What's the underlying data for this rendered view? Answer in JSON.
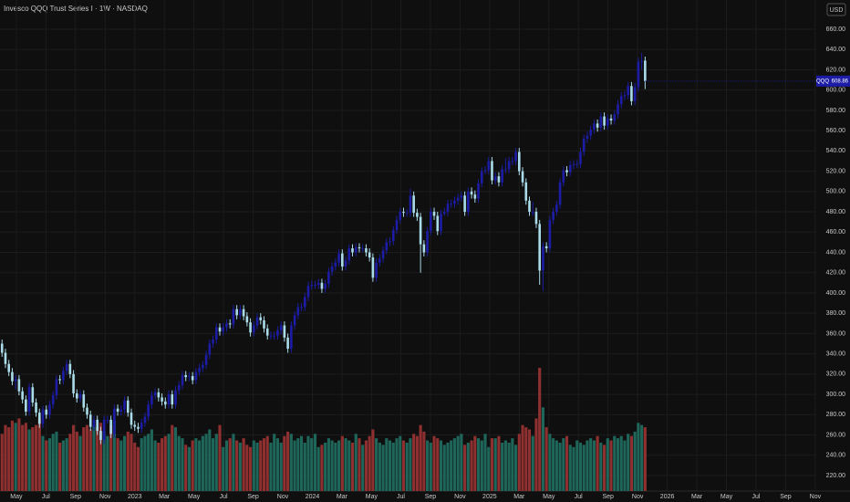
{
  "chart_data": {
    "type": "candlestick",
    "title": "Invesco QQQ Trust Series I · 1W · NASDAQ",
    "symbol": "QQQ",
    "currency": "USD",
    "up_color": "#1c1ca6",
    "down_color": "#a9dbe8",
    "volume_up_color": "#1f665a",
    "volume_down_color": "#8e3030",
    "grid": true,
    "ylim": [
      204.7,
      688.8
    ],
    "yticks": [
      {
        "value": 220,
        "label": "220.00"
      },
      {
        "value": 240,
        "label": "240.00"
      },
      {
        "value": 260,
        "label": "260.00"
      },
      {
        "value": 280,
        "label": "280.00"
      },
      {
        "value": 300,
        "label": "300.00"
      },
      {
        "value": 320,
        "label": "320.00"
      },
      {
        "value": 340,
        "label": "340.00"
      },
      {
        "value": 360,
        "label": "360.00"
      },
      {
        "value": 380,
        "label": "380.00"
      },
      {
        "value": 400,
        "label": "400.00"
      },
      {
        "value": 420,
        "label": "420.00"
      },
      {
        "value": 440,
        "label": "440.00"
      },
      {
        "value": 460,
        "label": "460.00"
      },
      {
        "value": 480,
        "label": "480.00"
      },
      {
        "value": 500,
        "label": "500.00"
      },
      {
        "value": 520,
        "label": "520.00"
      },
      {
        "value": 540,
        "label": "540.00"
      },
      {
        "value": 560,
        "label": "560.00"
      },
      {
        "value": 580,
        "label": "580.00"
      },
      {
        "value": 600,
        "label": "600.00"
      },
      {
        "value": 620,
        "label": "620.00"
      },
      {
        "value": 640,
        "label": "640.00"
      },
      {
        "value": 660,
        "label": "660.00"
      }
    ],
    "xlim": [
      -0.6,
      239.3
    ],
    "xticks": [
      {
        "value": 4.2,
        "label": "May"
      },
      {
        "value": 12.9,
        "label": "Jul"
      },
      {
        "value": 21.6,
        "label": "Sep"
      },
      {
        "value": 30.3,
        "label": "Nov"
      },
      {
        "value": 39.0,
        "label": "2023"
      },
      {
        "value": 47.7,
        "label": "Mar"
      },
      {
        "value": 56.4,
        "label": "May"
      },
      {
        "value": 65.1,
        "label": "Jul"
      },
      {
        "value": 73.8,
        "label": "Sep"
      },
      {
        "value": 82.5,
        "label": "Nov"
      },
      {
        "value": 91.2,
        "label": "2024"
      },
      {
        "value": 99.9,
        "label": "Mar"
      },
      {
        "value": 108.6,
        "label": "May"
      },
      {
        "value": 117.2,
        "label": "Jul"
      },
      {
        "value": 125.9,
        "label": "Sep"
      },
      {
        "value": 134.6,
        "label": "Nov"
      },
      {
        "value": 143.3,
        "label": "2025"
      },
      {
        "value": 152.0,
        "label": "Mar"
      },
      {
        "value": 160.7,
        "label": "May"
      },
      {
        "value": 169.4,
        "label": "Jul"
      },
      {
        "value": 178.1,
        "label": "Sep"
      },
      {
        "value": 186.8,
        "label": "Nov"
      },
      {
        "value": 195.5,
        "label": "2026"
      },
      {
        "value": 204.2,
        "label": "Mar"
      },
      {
        "value": 212.9,
        "label": "May"
      },
      {
        "value": 221.6,
        "label": "Jul"
      },
      {
        "value": 230.3,
        "label": "Sep"
      },
      {
        "value": 239.0,
        "label": "Nov"
      }
    ],
    "candles": [
      [
        350,
        354,
        337,
        341
      ],
      [
        341,
        345,
        326,
        330
      ],
      [
        330,
        334,
        318,
        322
      ],
      [
        322,
        326,
        309,
        313
      ],
      [
        313,
        319,
        305,
        315
      ],
      [
        315,
        319,
        299,
        303
      ],
      [
        303,
        307,
        291,
        295
      ],
      [
        295,
        299,
        279,
        283
      ],
      [
        283,
        311,
        279,
        307
      ],
      [
        307,
        311,
        288,
        292
      ],
      [
        292,
        296,
        278,
        282
      ],
      [
        282,
        286,
        267,
        271
      ],
      [
        271,
        289,
        267,
        285
      ],
      [
        285,
        289,
        276,
        280
      ],
      [
        280,
        294,
        276,
        290
      ],
      [
        290,
        303,
        286,
        299
      ],
      [
        299,
        319,
        295,
        315
      ],
      [
        315,
        319,
        310,
        314
      ],
      [
        314,
        327,
        310,
        323
      ],
      [
        323,
        334,
        319,
        330
      ],
      [
        330,
        334,
        316,
        320
      ],
      [
        320,
        324,
        297,
        301
      ],
      [
        301,
        305,
        292,
        296
      ],
      [
        296,
        304,
        292,
        300
      ],
      [
        300,
        304,
        283,
        287
      ],
      [
        287,
        291,
        276,
        280
      ],
      [
        280,
        284,
        264,
        268
      ],
      [
        268,
        279,
        264,
        275
      ],
      [
        275,
        279,
        260,
        264
      ],
      [
        264,
        268,
        251,
        255
      ],
      [
        255,
        279,
        251,
        275
      ],
      [
        275,
        279,
        271,
        275
      ],
      [
        275,
        279,
        257,
        261
      ],
      [
        261,
        290,
        257,
        286
      ],
      [
        286,
        290,
        279,
        283
      ],
      [
        283,
        289,
        279,
        285
      ],
      [
        285,
        298,
        281,
        294
      ],
      [
        294,
        298,
        278,
        282
      ],
      [
        282,
        286,
        266,
        270
      ],
      [
        270,
        274,
        264,
        268
      ],
      [
        268,
        272,
        262,
        266
      ],
      [
        266,
        276,
        262,
        272
      ],
      [
        272,
        282,
        268,
        278
      ],
      [
        278,
        294,
        274,
        290
      ],
      [
        290,
        303,
        286,
        299
      ],
      [
        299,
        306,
        295,
        302
      ],
      [
        302,
        306,
        293,
        297
      ],
      [
        297,
        301,
        289,
        293
      ],
      [
        293,
        297,
        286,
        290
      ],
      [
        290,
        304,
        286,
        300
      ],
      [
        300,
        304,
        286,
        290
      ],
      [
        290,
        308,
        286,
        304
      ],
      [
        304,
        313,
        300,
        309
      ],
      [
        309,
        323,
        305,
        319
      ],
      [
        319,
        323,
        313,
        317
      ],
      [
        317,
        322,
        313,
        318
      ],
      [
        318,
        322,
        310,
        314
      ],
      [
        314,
        326,
        310,
        322
      ],
      [
        322,
        330,
        318,
        326
      ],
      [
        326,
        333,
        322,
        329
      ],
      [
        329,
        343,
        325,
        339
      ],
      [
        339,
        354,
        335,
        350
      ],
      [
        350,
        358,
        346,
        354
      ],
      [
        354,
        370,
        350,
        366
      ],
      [
        366,
        370,
        358,
        362
      ],
      [
        362,
        370,
        358,
        366
      ],
      [
        366,
        374,
        362,
        370
      ],
      [
        370,
        374,
        365,
        369
      ],
      [
        369,
        388,
        365,
        384
      ],
      [
        384,
        388,
        374,
        378
      ],
      [
        378,
        388,
        374,
        384
      ],
      [
        384,
        388,
        373,
        377
      ],
      [
        377,
        381,
        367,
        371
      ],
      [
        371,
        375,
        357,
        361
      ],
      [
        361,
        372,
        357,
        368
      ],
      [
        368,
        380,
        364,
        376
      ],
      [
        376,
        380,
        369,
        373
      ],
      [
        373,
        377,
        361,
        365
      ],
      [
        365,
        369,
        354,
        358
      ],
      [
        358,
        362,
        354,
        358
      ],
      [
        358,
        362,
        354,
        358
      ],
      [
        358,
        367,
        354,
        363
      ],
      [
        363,
        372,
        359,
        368
      ],
      [
        368,
        372,
        352,
        356
      ],
      [
        356,
        360,
        341,
        345
      ],
      [
        345,
        372,
        341,
        368
      ],
      [
        368,
        382,
        364,
        378
      ],
      [
        378,
        390,
        374,
        386
      ],
      [
        386,
        390,
        382,
        386
      ],
      [
        386,
        400,
        382,
        396
      ],
      [
        396,
        411,
        392,
        407
      ],
      [
        407,
        412,
        403,
        408
      ],
      [
        408,
        412,
        404,
        408
      ],
      [
        408,
        414,
        404,
        410
      ],
      [
        410,
        414,
        400,
        404
      ],
      [
        404,
        413,
        400,
        409
      ],
      [
        409,
        425,
        405,
        421
      ],
      [
        421,
        430,
        417,
        426
      ],
      [
        426,
        434,
        422,
        430
      ],
      [
        430,
        443,
        426,
        439
      ],
      [
        439,
        443,
        422,
        426
      ],
      [
        426,
        436,
        422,
        432
      ],
      [
        432,
        448,
        428,
        444
      ],
      [
        444,
        448,
        436,
        440
      ],
      [
        440,
        449,
        436,
        445
      ],
      [
        445,
        449,
        440,
        444
      ],
      [
        444,
        448,
        440,
        444
      ],
      [
        444,
        448,
        436,
        440
      ],
      [
        440,
        444,
        431,
        435
      ],
      [
        435,
        439,
        411,
        415
      ],
      [
        415,
        434,
        411,
        430
      ],
      [
        430,
        438,
        426,
        434
      ],
      [
        434,
        446,
        430,
        442
      ],
      [
        442,
        454,
        438,
        450
      ],
      [
        450,
        455,
        446,
        451
      ],
      [
        451,
        466,
        447,
        462
      ],
      [
        462,
        476,
        458,
        472
      ],
      [
        472,
        484,
        468,
        480
      ],
      [
        480,
        484,
        475,
        479
      ],
      [
        479,
        483,
        475,
        479
      ],
      [
        479,
        503,
        475,
        496
      ],
      [
        496,
        500,
        475,
        479
      ],
      [
        479,
        483,
        471,
        475
      ],
      [
        475,
        479,
        420,
        448
      ],
      [
        448,
        452,
        436,
        440
      ],
      [
        440,
        465,
        436,
        461
      ],
      [
        461,
        484,
        457,
        480
      ],
      [
        480,
        484,
        472,
        476
      ],
      [
        476,
        480,
        457,
        461
      ],
      [
        461,
        482,
        457,
        478
      ],
      [
        478,
        484,
        476,
        480
      ],
      [
        480,
        492,
        476,
        488
      ],
      [
        488,
        492,
        484,
        488
      ],
      [
        488,
        495,
        484,
        491
      ],
      [
        491,
        498,
        487,
        494
      ],
      [
        494,
        500,
        490,
        496
      ],
      [
        496,
        500,
        476,
        480
      ],
      [
        480,
        504,
        476,
        500
      ],
      [
        500,
        504,
        493,
        497
      ],
      [
        497,
        501,
        489,
        493
      ],
      [
        493,
        512,
        489,
        508
      ],
      [
        508,
        524,
        504,
        520
      ],
      [
        520,
        525,
        517,
        521
      ],
      [
        521,
        534,
        517,
        530
      ],
      [
        530,
        534,
        507,
        511
      ],
      [
        511,
        519,
        507,
        515
      ],
      [
        515,
        519,
        505,
        509
      ],
      [
        509,
        526,
        505,
        522
      ],
      [
        522,
        533,
        518,
        522
      ],
      [
        522,
        534,
        518,
        530
      ],
      [
        530,
        534,
        526,
        530
      ],
      [
        530,
        543,
        526,
        539
      ],
      [
        539,
        543,
        516,
        520
      ],
      [
        520,
        524,
        505,
        509
      ],
      [
        509,
        513,
        487,
        491
      ],
      [
        491,
        495,
        476,
        480
      ],
      [
        480,
        490,
        476,
        480
      ],
      [
        480,
        484,
        464,
        468
      ],
      [
        468,
        472,
        408,
        422
      ],
      [
        422,
        450,
        402,
        446
      ],
      [
        446,
        450,
        440,
        444
      ],
      [
        444,
        476,
        440,
        472
      ],
      [
        472,
        484,
        468,
        480
      ],
      [
        480,
        491,
        476,
        487
      ],
      [
        487,
        513,
        483,
        509
      ],
      [
        509,
        525,
        505,
        521
      ],
      [
        521,
        525,
        515,
        519
      ],
      [
        519,
        530,
        515,
        526
      ],
      [
        526,
        531,
        522,
        527
      ],
      [
        527,
        531,
        523,
        527
      ],
      [
        527,
        543,
        523,
        539
      ],
      [
        539,
        556,
        535,
        552
      ],
      [
        552,
        559,
        548,
        555
      ],
      [
        555,
        565,
        551,
        561
      ],
      [
        561,
        571,
        557,
        567
      ],
      [
        567,
        571,
        559,
        563
      ],
      [
        563,
        578,
        559,
        574
      ],
      [
        574,
        578,
        561,
        565
      ],
      [
        565,
        576,
        561,
        572
      ],
      [
        572,
        576,
        566,
        570
      ],
      [
        570,
        580,
        566,
        576
      ],
      [
        576,
        590,
        572,
        586
      ],
      [
        586,
        598,
        582,
        594
      ],
      [
        594,
        599,
        590,
        595
      ],
      [
        595,
        608,
        591,
        604
      ],
      [
        604,
        608,
        585,
        589
      ],
      [
        589,
        607,
        585,
        603
      ],
      [
        603,
        632,
        599,
        628
      ],
      [
        628,
        637,
        620,
        629
      ],
      [
        629,
        633,
        601,
        608.86
      ]
    ],
    "volume": [
      260,
      300,
      290,
      320,
      310,
      330,
      300,
      310,
      280,
      290,
      300,
      330,
      250,
      230,
      240,
      260,
      270,
      220,
      230,
      240,
      260,
      300,
      270,
      250,
      290,
      300,
      280,
      300,
      290,
      310,
      270,
      250,
      300,
      320,
      240,
      230,
      250,
      270,
      260,
      220,
      200,
      240,
      250,
      260,
      280,
      230,
      220,
      240,
      250,
      260,
      300,
      290,
      250,
      240,
      210,
      200,
      230,
      240,
      230,
      250,
      260,
      280,
      240,
      260,
      300,
      200,
      230,
      240,
      260,
      230,
      220,
      240,
      210,
      200,
      230,
      220,
      230,
      240,
      250,
      220,
      260,
      240,
      220,
      250,
      270,
      260,
      230,
      240,
      250,
      220,
      250,
      240,
      260,
      200,
      210,
      220,
      240,
      230,
      220,
      230,
      250,
      240,
      230,
      220,
      260,
      240,
      210,
      230,
      250,
      280,
      240,
      220,
      210,
      240,
      230,
      220,
      240,
      250,
      230,
      220,
      240,
      260,
      250,
      300,
      270,
      230,
      220,
      250,
      240,
      230,
      210,
      220,
      230,
      240,
      250,
      260,
      210,
      220,
      230,
      250,
      240,
      230,
      260,
      200,
      240,
      240,
      250,
      220,
      230,
      220,
      240,
      210,
      260,
      300,
      290,
      280,
      250,
      330,
      560,
      380,
      290,
      260,
      240,
      230,
      220,
      240,
      250,
      210,
      200,
      230,
      220,
      210,
      230,
      240,
      230,
      250,
      220,
      210,
      240,
      230,
      250,
      240,
      250,
      230,
      260,
      250,
      270,
      310,
      300,
      290
    ]
  }
}
